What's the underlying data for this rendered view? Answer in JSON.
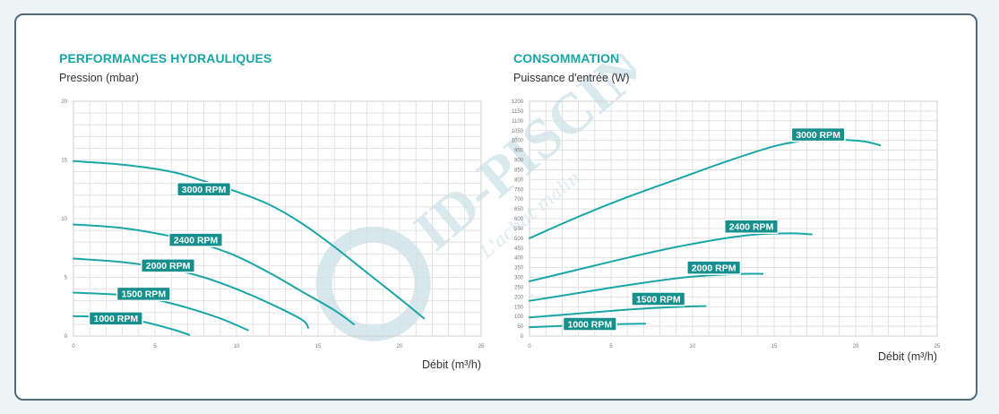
{
  "colors": {
    "curve": "#1aa6a6",
    "label_bg": "#178f8c",
    "title": "#1aa6a6",
    "grid": "#d8d8d8",
    "watermark": "#cfe3ea"
  },
  "watermark": {
    "text": "ID-PISCINE",
    "tagline": "L'achat malin"
  },
  "chart_data": [
    {
      "type": "line",
      "title": "PERFORMANCES HYDRAULIQUES",
      "ylabel": "Pression (mbar)",
      "xlabel": "Débit (m³/h)",
      "xlim": [
        0,
        25
      ],
      "ylim": [
        0,
        20
      ],
      "x_ticks": [
        0,
        5,
        10,
        15,
        20,
        25
      ],
      "y_ticks": [
        0,
        5,
        10,
        15,
        20
      ],
      "grid": true,
      "series": [
        {
          "name": "3000 RPM",
          "label_at": [
            8,
            12.5
          ],
          "points": [
            [
              0,
              14.9
            ],
            [
              3,
              14.6
            ],
            [
              6,
              14.0
            ],
            [
              8,
              13.2
            ],
            [
              10,
              12.3
            ],
            [
              12,
              11.2
            ],
            [
              14,
              9.6
            ],
            [
              16,
              7.6
            ],
            [
              18,
              5.4
            ],
            [
              20,
              3.2
            ],
            [
              21.5,
              1.5
            ]
          ]
        },
        {
          "name": "2400 RPM",
          "label_at": [
            7.5,
            8.2
          ],
          "points": [
            [
              0,
              9.5
            ],
            [
              3,
              9.2
            ],
            [
              6,
              8.5
            ],
            [
              8,
              7.8
            ],
            [
              10,
              6.8
            ],
            [
              12,
              5.4
            ],
            [
              14,
              3.8
            ],
            [
              16,
              2.2
            ],
            [
              17.2,
              1.0
            ]
          ]
        },
        {
          "name": "2000 RPM",
          "label_at": [
            5.8,
            6.0
          ],
          "points": [
            [
              0,
              6.6
            ],
            [
              3,
              6.3
            ],
            [
              6,
              5.7
            ],
            [
              8,
              5.0
            ],
            [
              10,
              4.0
            ],
            [
              12,
              2.8
            ],
            [
              14,
              1.4
            ],
            [
              14.4,
              0.7
            ]
          ]
        },
        {
          "name": "1500 RPM",
          "label_at": [
            4.3,
            3.6
          ],
          "points": [
            [
              0,
              3.7
            ],
            [
              3,
              3.5
            ],
            [
              5,
              3.1
            ],
            [
              7,
              2.4
            ],
            [
              9,
              1.5
            ],
            [
              10.7,
              0.5
            ]
          ]
        },
        {
          "name": "1000 RPM",
          "label_at": [
            2.6,
            1.5
          ],
          "points": [
            [
              0,
              1.7
            ],
            [
              2,
              1.6
            ],
            [
              4,
              1.3
            ],
            [
              6,
              0.6
            ],
            [
              7.1,
              0.1
            ]
          ]
        }
      ]
    },
    {
      "type": "line",
      "title": "CONSOMMATION",
      "ylabel": "Puissance d'entrée (W)",
      "xlabel": "Débit (m³/h)",
      "xlim": [
        0,
        25
      ],
      "ylim": [
        0,
        1200
      ],
      "x_ticks": [
        0,
        5,
        10,
        15,
        20,
        25
      ],
      "y_ticks": [
        0,
        50,
        100,
        150,
        200,
        250,
        300,
        350,
        400,
        450,
        500,
        550,
        600,
        650,
        700,
        750,
        800,
        850,
        900,
        950,
        1000,
        1050,
        1100,
        1150,
        1200
      ],
      "grid": true,
      "series": [
        {
          "name": "3000 RPM",
          "label_at": [
            17.7,
            1030
          ],
          "points": [
            [
              0,
              500
            ],
            [
              3,
              610
            ],
            [
              6,
              710
            ],
            [
              9,
              800
            ],
            [
              12,
              890
            ],
            [
              15,
              970
            ],
            [
              17,
              1000
            ],
            [
              19,
              1003
            ],
            [
              20.5,
              995
            ],
            [
              21.5,
              975
            ]
          ]
        },
        {
          "name": "2400 RPM",
          "label_at": [
            13.6,
            560
          ],
          "points": [
            [
              0,
              280
            ],
            [
              3,
              340
            ],
            [
              6,
              400
            ],
            [
              9,
              455
            ],
            [
              12,
              500
            ],
            [
              14,
              520
            ],
            [
              16,
              525
            ],
            [
              17.3,
              520
            ]
          ]
        },
        {
          "name": "2000 RPM",
          "label_at": [
            11.3,
            350
          ],
          "points": [
            [
              0,
              180
            ],
            [
              3,
              220
            ],
            [
              6,
              260
            ],
            [
              9,
              295
            ],
            [
              11,
              310
            ],
            [
              13,
              318
            ],
            [
              14.3,
              318
            ]
          ]
        },
        {
          "name": "1500 RPM",
          "label_at": [
            7.9,
            190
          ],
          "points": [
            [
              0,
              95
            ],
            [
              3,
              115
            ],
            [
              6,
              135
            ],
            [
              8,
              145
            ],
            [
              10,
              152
            ],
            [
              10.8,
              153
            ]
          ]
        },
        {
          "name": "1000 RPM",
          "label_at": [
            3.7,
            62
          ],
          "points": [
            [
              0,
              45
            ],
            [
              2,
              52
            ],
            [
              4,
              58
            ],
            [
              6,
              62
            ],
            [
              7.1,
              63
            ]
          ]
        }
      ]
    }
  ]
}
